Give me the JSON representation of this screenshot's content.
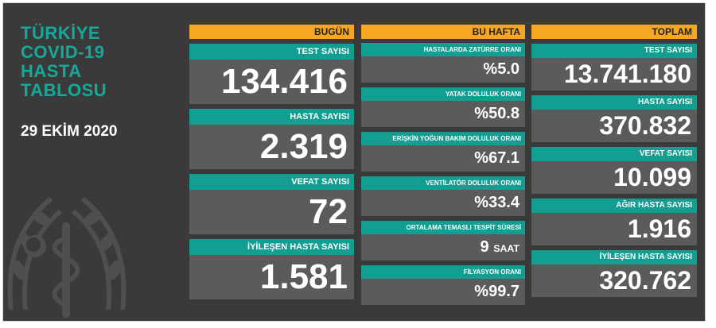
{
  "heading": {
    "lines": [
      "TÜRKİYE",
      "COVID-19",
      "HASTA",
      "TABLOSU"
    ],
    "date": "29 EKİM 2020"
  },
  "colors": {
    "accent_orange": "#f5a623",
    "teal": "#129e90",
    "bg": "#3a3a3a",
    "cell": "#5b5b5b"
  },
  "bugun": {
    "header": "BUGÜN",
    "items": [
      {
        "label": "TEST SAYISI",
        "value": "134.416"
      },
      {
        "label": "HASTA SAYISI",
        "value": "2.319"
      },
      {
        "label": "VEFAT SAYISI",
        "value": "72"
      },
      {
        "label": "İYİLEŞEN HASTA SAYISI",
        "value": "1.581"
      }
    ]
  },
  "bu_hafta": {
    "header": "BU HAFTA",
    "items": [
      {
        "label": "HASTALARDA ZATÜRRE ORANI",
        "value": "%5.0"
      },
      {
        "label": "YATAK DOLULUK ORANI",
        "value": "%50.8"
      },
      {
        "label": "ERİŞKİN YOĞUN BAKIM DOLULUK ORANI",
        "value": "%67.1"
      },
      {
        "label": "VENTİLATÖR DOLULUK ORANI",
        "value": "%33.4"
      },
      {
        "label": "ORTALAMA TEMASLI TESPİT SÜRESİ",
        "value": "9",
        "unit": "SAAT"
      },
      {
        "label": "FİLYASYON ORANI",
        "value": "%99.7"
      }
    ]
  },
  "toplam": {
    "header": "TOPLAM",
    "items": [
      {
        "label": "TEST SAYISI",
        "value": "13.741.180"
      },
      {
        "label": "HASTA SAYISI",
        "value": "370.832"
      },
      {
        "label": "VEFAT SAYISI",
        "value": "10.099"
      },
      {
        "label": "AĞIR HASTA SAYISI",
        "value": "1.916"
      },
      {
        "label": "İYİLEŞEN HASTA SAYISI",
        "value": "320.762"
      }
    ]
  }
}
